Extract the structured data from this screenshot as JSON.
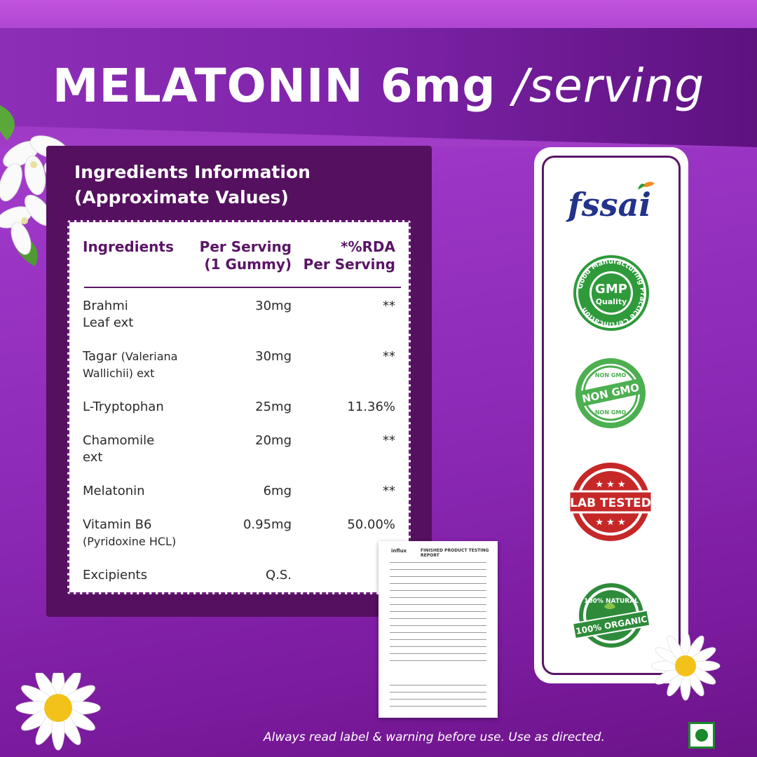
{
  "banner": {
    "title_bold": "MELATONIN 6mg",
    "title_light": "/serving"
  },
  "ingredients_panel": {
    "heading_line1": "Ingredients Information",
    "heading_line2": "(Approximate Values)",
    "columns": {
      "col1": "Ingredients",
      "col2_line1": "Per Serving",
      "col2_line2": "(1 Gummy)",
      "col3_line1": "*%RDA",
      "col3_line2": "Per Serving"
    },
    "rows": [
      {
        "name_line1": "Brahmi",
        "name_line2": "Leaf ext",
        "per_serving": "30mg",
        "rda": "**"
      },
      {
        "name_line1": "Tagar",
        "name_line1_small": "(Valeriana",
        "name_line2": "Wallichii) ext",
        "per_serving": "30mg",
        "rda": "**"
      },
      {
        "name_line1": "L-Tryptophan",
        "per_serving": "25mg",
        "rda": "11.36%"
      },
      {
        "name_line1": "Chamomile",
        "name_line2": "ext",
        "per_serving": "20mg",
        "rda": "**"
      },
      {
        "name_line1": "Melatonin",
        "per_serving": "6mg",
        "rda": "**"
      },
      {
        "name_line1": "Vitamin B6",
        "name_line2": "(Pyridoxine HCL)",
        "per_serving": "0.95mg",
        "rda": "50.00%"
      },
      {
        "name_line1": "Excipients",
        "per_serving": "Q.S.",
        "rda": ""
      }
    ]
  },
  "certifications": {
    "fssai": "fssai",
    "gmp_ring": "Good Manufacturing Practice Certification",
    "gmp_center": "GMP",
    "gmp_sub": "Quality",
    "nongmo_top": "NON GMO",
    "nongmo_center": "NON GMO",
    "nongmo_bottom": "NON GMO",
    "lab": "LAB TESTED",
    "organic_top": "100% NATURAL",
    "organic_center": "100% ORGANIC"
  },
  "report": {
    "brand": "influx",
    "title": "FINISHED PRODUCT TESTING REPORT"
  },
  "footer": {
    "disclaimer": "Always read label & warning before use. Use as directed."
  },
  "colors": {
    "purple_dark": "#55105f",
    "green_badge": "#2e9a3a",
    "red_badge": "#c62828"
  }
}
